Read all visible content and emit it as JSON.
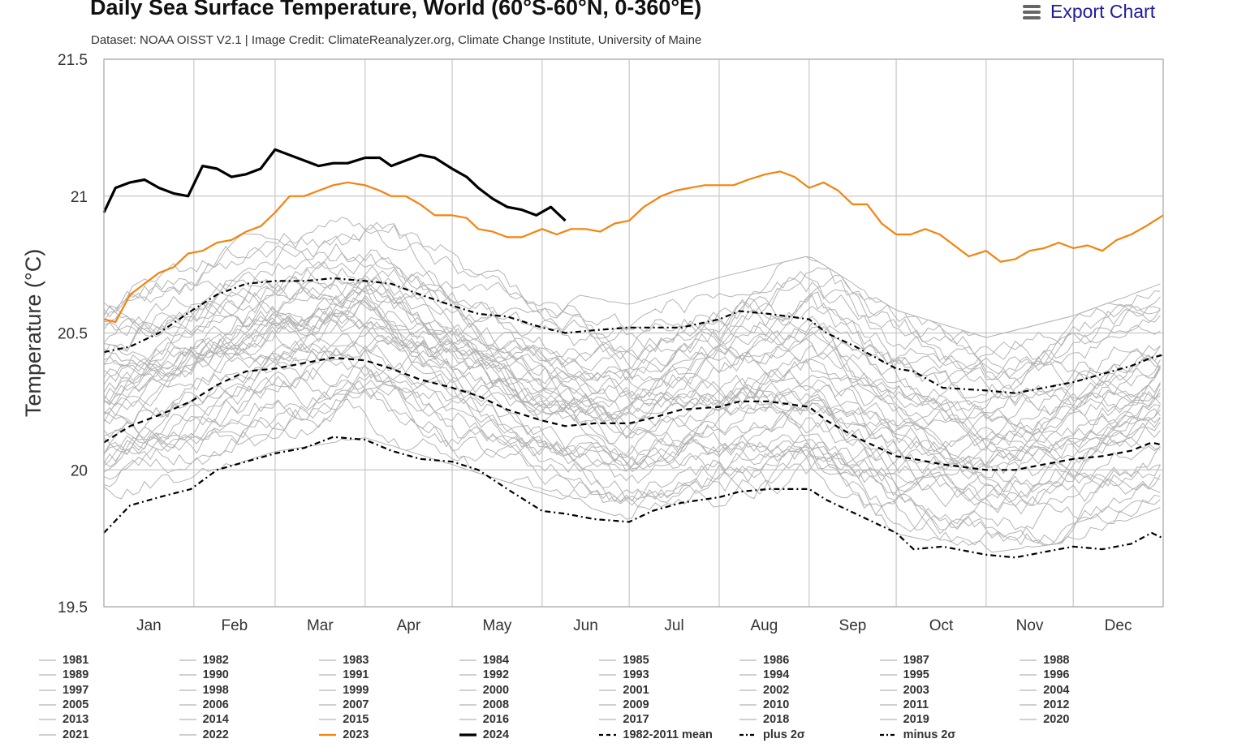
{
  "header": {
    "title": "Daily Sea Surface Temperature, World (60°S-60°N, 0-360°E)",
    "subtitle": "Dataset: NOAA OISST V2.1 | Image Credit: ClimateReanalyzer.org, Climate Change Institute, University of Maine",
    "export_label": "Export Chart"
  },
  "colors": {
    "year_2023": "#f5820d",
    "year_2024": "#000000",
    "historical": "#b4b4b4",
    "stat_lines": "#000000",
    "gridline": "#c8c8c8"
  },
  "chart_data": {
    "type": "line",
    "title": "Daily Sea Surface Temperature, World (60°S-60°N, 0-360°E)",
    "subtitle": "Dataset: NOAA OISST V2.1 | Image Credit: ClimateReanalyzer.org, Climate Change Institute, University of Maine",
    "ylabel": "Temperature (°C)",
    "xlabel": "",
    "ylim": [
      19.5,
      21.5
    ],
    "xlim": [
      1,
      366
    ],
    "x_unit": "day of year",
    "yticks": [
      19.5,
      20,
      20.5,
      21,
      21.5
    ],
    "month_labels": [
      "Jan",
      "Feb",
      "Mar",
      "Apr",
      "May",
      "Jun",
      "Jul",
      "Aug",
      "Sep",
      "Oct",
      "Nov",
      "Dec"
    ],
    "grid": true,
    "legend_position": "bottom",
    "historical_years": [
      "1981",
      "1982",
      "1983",
      "1984",
      "1985",
      "1986",
      "1987",
      "1988",
      "1989",
      "1990",
      "1991",
      "1992",
      "1993",
      "1994",
      "1995",
      "1996",
      "1997",
      "1998",
      "1999",
      "2000",
      "2001",
      "2002",
      "2003",
      "2004",
      "2005",
      "2006",
      "2007",
      "2008",
      "2009",
      "2010",
      "2011",
      "2012",
      "2013",
      "2014",
      "2015",
      "2016",
      "2017",
      "2018",
      "2019",
      "2020",
      "2021",
      "2022"
    ],
    "historical_envelope": {
      "x": [
        1,
        60,
        91,
        152,
        182,
        213,
        244,
        274,
        305,
        335,
        366
      ],
      "low": [
        19.85,
        20.05,
        20.1,
        19.9,
        19.8,
        19.85,
        19.88,
        19.75,
        19.68,
        19.72,
        19.85
      ],
      "high": [
        20.7,
        20.92,
        20.98,
        20.68,
        20.62,
        20.72,
        20.8,
        20.6,
        20.5,
        20.58,
        20.7
      ]
    },
    "series": [
      {
        "name": "2023",
        "style": "solid-orange",
        "x": [
          1,
          5,
          10,
          15,
          20,
          25,
          30,
          35,
          40,
          45,
          50,
          55,
          60,
          65,
          70,
          75,
          80,
          85,
          91,
          96,
          100,
          105,
          110,
          115,
          121,
          126,
          130,
          135,
          140,
          145,
          152,
          157,
          162,
          167,
          172,
          177,
          182,
          187,
          193,
          198,
          203,
          208,
          213,
          218,
          223,
          229,
          234,
          239,
          244,
          249,
          254,
          259,
          264,
          269,
          274,
          279,
          284,
          289,
          294,
          299,
          305,
          310,
          315,
          320,
          325,
          330,
          335,
          340,
          345,
          350,
          355,
          360,
          366
        ],
        "y": [
          20.55,
          20.54,
          20.64,
          20.68,
          20.72,
          20.74,
          20.79,
          20.8,
          20.83,
          20.84,
          20.87,
          20.89,
          20.94,
          21.0,
          21.0,
          21.02,
          21.04,
          21.05,
          21.04,
          21.02,
          21.0,
          21.0,
          20.97,
          20.93,
          20.93,
          20.92,
          20.88,
          20.87,
          20.85,
          20.85,
          20.88,
          20.86,
          20.88,
          20.88,
          20.87,
          20.9,
          20.91,
          20.96,
          21.0,
          21.02,
          21.03,
          21.04,
          21.04,
          21.04,
          21.06,
          21.08,
          21.09,
          21.07,
          21.03,
          21.05,
          21.02,
          20.97,
          20.97,
          20.9,
          20.86,
          20.86,
          20.88,
          20.86,
          20.82,
          20.78,
          20.8,
          20.76,
          20.77,
          20.8,
          20.81,
          20.83,
          20.81,
          20.82,
          20.8,
          20.84,
          20.86,
          20.89,
          20.93
        ]
      },
      {
        "name": "2024",
        "style": "solid-black-thick",
        "x": [
          1,
          5,
          10,
          15,
          20,
          25,
          30,
          35,
          40,
          45,
          50,
          55,
          60,
          65,
          70,
          75,
          80,
          85,
          91,
          96,
          100,
          105,
          110,
          115,
          121,
          126,
          130,
          135,
          140,
          145,
          150,
          155,
          157,
          160
        ],
        "y": [
          20.94,
          21.03,
          21.05,
          21.06,
          21.03,
          21.01,
          21.0,
          21.11,
          21.1,
          21.07,
          21.08,
          21.1,
          21.17,
          21.15,
          21.13,
          21.11,
          21.12,
          21.12,
          21.14,
          21.14,
          21.11,
          21.13,
          21.15,
          21.14,
          21.1,
          21.07,
          21.03,
          20.99,
          20.96,
          20.95,
          20.93,
          20.96,
          20.94,
          20.91
        ]
      },
      {
        "name": "1982-2011 mean",
        "style": "dash",
        "x": [
          1,
          10,
          20,
          31,
          40,
          50,
          60,
          70,
          80,
          91,
          100,
          110,
          121,
          130,
          140,
          152,
          160,
          170,
          182,
          190,
          200,
          213,
          220,
          230,
          244,
          250,
          260,
          274,
          280,
          290,
          305,
          315,
          325,
          335,
          345,
          355,
          362,
          366
        ],
        "y": [
          20.1,
          20.16,
          20.2,
          20.25,
          20.31,
          20.36,
          20.37,
          20.39,
          20.41,
          20.4,
          20.37,
          20.33,
          20.3,
          20.27,
          20.22,
          20.18,
          20.16,
          20.17,
          20.17,
          20.19,
          20.22,
          20.23,
          20.25,
          20.25,
          20.23,
          20.18,
          20.12,
          20.05,
          20.04,
          20.02,
          20.0,
          20.0,
          20.02,
          20.04,
          20.05,
          20.07,
          20.1,
          20.09
        ]
      },
      {
        "name": "plus 2σ",
        "style": "dash-dot",
        "x": [
          1,
          10,
          20,
          31,
          40,
          50,
          60,
          70,
          80,
          91,
          100,
          110,
          121,
          130,
          140,
          152,
          160,
          170,
          182,
          190,
          200,
          213,
          220,
          230,
          244,
          250,
          260,
          274,
          280,
          290,
          305,
          315,
          325,
          335,
          345,
          355,
          362,
          366
        ],
        "y": [
          20.43,
          20.45,
          20.5,
          20.58,
          20.64,
          20.68,
          20.69,
          20.69,
          20.7,
          20.69,
          20.68,
          20.64,
          20.6,
          20.57,
          20.56,
          20.52,
          20.5,
          20.51,
          20.52,
          20.52,
          20.52,
          20.55,
          20.58,
          20.57,
          20.55,
          20.5,
          20.45,
          20.37,
          20.36,
          20.3,
          20.29,
          20.28,
          20.3,
          20.32,
          20.35,
          20.38,
          20.41,
          20.42
        ]
      },
      {
        "name": "minus 2σ",
        "style": "dash-dot",
        "x": [
          1,
          10,
          20,
          31,
          40,
          50,
          60,
          70,
          80,
          91,
          100,
          110,
          121,
          130,
          140,
          152,
          160,
          170,
          182,
          190,
          200,
          213,
          220,
          230,
          244,
          250,
          260,
          274,
          280,
          290,
          305,
          315,
          325,
          335,
          345,
          355,
          362,
          366
        ],
        "y": [
          19.77,
          19.87,
          19.9,
          19.93,
          20.0,
          20.03,
          20.06,
          20.08,
          20.12,
          20.11,
          20.07,
          20.04,
          20.03,
          20.0,
          19.93,
          19.85,
          19.84,
          19.82,
          19.81,
          19.85,
          19.88,
          19.9,
          19.92,
          19.93,
          19.93,
          19.89,
          19.84,
          19.77,
          19.71,
          19.72,
          19.69,
          19.68,
          19.7,
          19.72,
          19.71,
          19.73,
          19.77,
          19.75
        ]
      }
    ]
  },
  "legend": {
    "items": [
      "1981",
      "1982",
      "1983",
      "1984",
      "1985",
      "1986",
      "1987",
      "1988",
      "1989",
      "1990",
      "1991",
      "1992",
      "1993",
      "1994",
      "1995",
      "1996",
      "1997",
      "1998",
      "1999",
      "2000",
      "2001",
      "2002",
      "2003",
      "2004",
      "2005",
      "2006",
      "2007",
      "2008",
      "2009",
      "2010",
      "2011",
      "2012",
      "2013",
      "2014",
      "2015",
      "2016",
      "2017",
      "2018",
      "2019",
      "2020",
      "2021",
      "2022",
      "2023",
      "2024",
      "1982-2011 mean",
      "plus 2σ",
      "minus 2σ"
    ]
  }
}
